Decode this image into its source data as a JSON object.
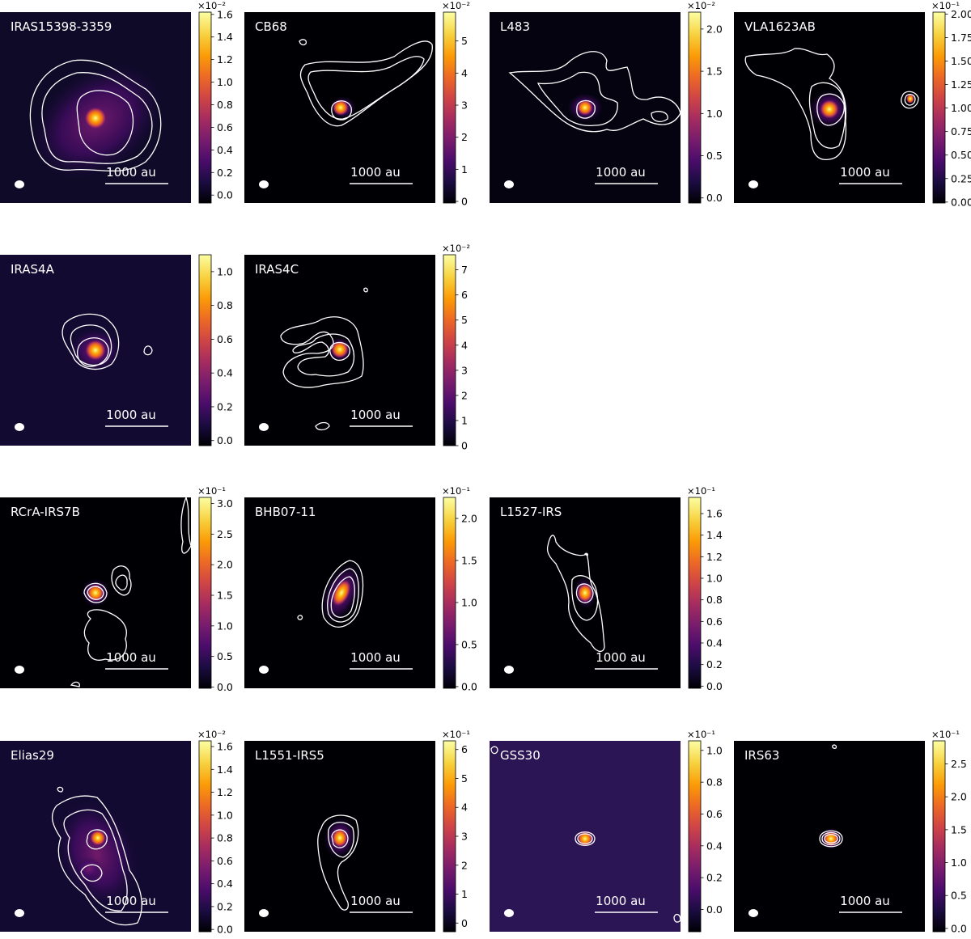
{
  "panels": [
    {
      "name": "IRAS15398-3359",
      "scalebar": "1000 au",
      "multiplier": "×10⁻²",
      "ticks": [
        "0.0",
        "0.2",
        "0.4",
        "0.6",
        "0.8",
        "1.0",
        "1.2",
        "1.4",
        "1.6"
      ],
      "vmin": -0.07,
      "vmax": 1.62
    },
    {
      "name": "CB68",
      "scalebar": "1000 au",
      "multiplier": "×10⁻²",
      "ticks": [
        "0",
        "1",
        "2",
        "3",
        "4",
        "5"
      ],
      "vmin": -0.05,
      "vmax": 5.9
    },
    {
      "name": "L483",
      "scalebar": "1000 au",
      "multiplier": "×10⁻²",
      "ticks": [
        "0.0",
        "0.5",
        "1.0",
        "1.5",
        "2.0"
      ],
      "vmin": -0.06,
      "vmax": 2.2
    },
    {
      "name": "VLA1623AB",
      "scalebar": "1000 au",
      "multiplier": "×10⁻¹",
      "ticks": [
        "0.00",
        "0.25",
        "0.50",
        "0.75",
        "1.00",
        "1.25",
        "1.50",
        "1.75",
        "2.00"
      ],
      "vmin": -0.01,
      "vmax": 2.02
    },
    {
      "name": "IRAS4A",
      "scalebar": "1000 au",
      "multiplier": "",
      "ticks": [
        "0.0",
        "0.2",
        "0.4",
        "0.6",
        "0.8",
        "1.0"
      ],
      "vmin": -0.03,
      "vmax": 1.1
    },
    {
      "name": "IRAS4C",
      "scalebar": "1000 au",
      "multiplier": "×10⁻²",
      "ticks": [
        "0",
        "1",
        "2",
        "3",
        "4",
        "5",
        "6",
        "7"
      ],
      "vmin": 0.0,
      "vmax": 7.6
    },
    {
      "name": "RCrA-IRS7B",
      "scalebar": "1000 au",
      "multiplier": "×10⁻¹",
      "ticks": [
        "0.0",
        "0.5",
        "1.0",
        "1.5",
        "2.0",
        "2.5",
        "3.0"
      ],
      "vmin": -0.02,
      "vmax": 3.1
    },
    {
      "name": "BHB07-11",
      "scalebar": "1000 au",
      "multiplier": "×10⁻¹",
      "ticks": [
        "0.0",
        "0.5",
        "1.0",
        "1.5",
        "2.0"
      ],
      "vmin": -0.02,
      "vmax": 2.25
    },
    {
      "name": "L1527-IRS",
      "scalebar": "1000 au",
      "multiplier": "×10⁻¹",
      "ticks": [
        "0.0",
        "0.2",
        "0.4",
        "0.6",
        "0.8",
        "1.0",
        "1.2",
        "1.4",
        "1.6"
      ],
      "vmin": -0.02,
      "vmax": 1.75
    },
    {
      "name": "Elias29",
      "scalebar": "1000 au",
      "multiplier": "×10⁻²",
      "ticks": [
        "0.0",
        "0.2",
        "0.4",
        "0.6",
        "0.8",
        "1.0",
        "1.2",
        "1.4",
        "1.6"
      ],
      "vmin": -0.02,
      "vmax": 1.65
    },
    {
      "name": "L1551-IRS5",
      "scalebar": "1000 au",
      "multiplier": "×10⁻¹",
      "ticks": [
        "0",
        "1",
        "2",
        "3",
        "4",
        "5",
        "6"
      ],
      "vmin": -0.3,
      "vmax": 6.3
    },
    {
      "name": "GSS30",
      "scalebar": "1000 au",
      "multiplier": "×10⁻¹",
      "ticks": [
        "0.0",
        "0.2",
        "0.4",
        "0.6",
        "0.8",
        "1.0"
      ],
      "vmin": -0.14,
      "vmax": 1.06
    },
    {
      "name": "IRS63",
      "scalebar": "1000 au",
      "multiplier": "×10⁻¹",
      "ticks": [
        "0.0",
        "0.5",
        "1.0",
        "1.5",
        "2.0",
        "2.5"
      ],
      "vmin": -0.05,
      "vmax": 2.85
    }
  ],
  "colors": {
    "background": "#000004",
    "contour": "#ffffff",
    "colormap": [
      "#000004",
      "#1b0c41",
      "#4a0c6b",
      "#781c6d",
      "#a52c60",
      "#cf4446",
      "#ed6925",
      "#fb9b06",
      "#f7d13d",
      "#fcffa4"
    ]
  },
  "colormap_name": "inferno"
}
